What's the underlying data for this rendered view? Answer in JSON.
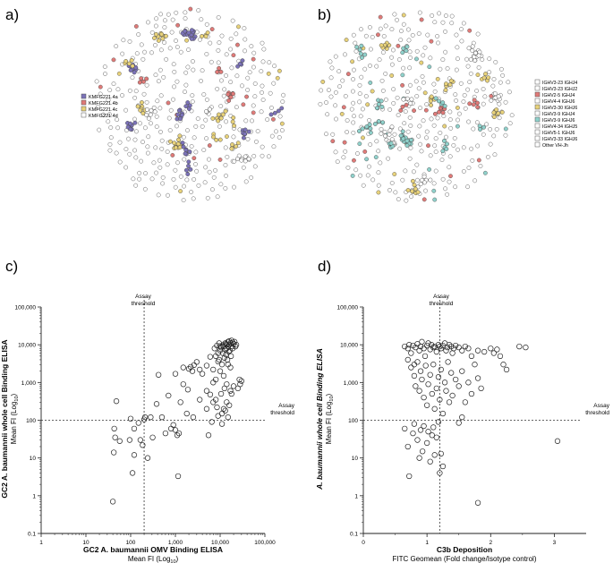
{
  "panels": {
    "a": {
      "label": "a)",
      "legend": [
        "KMFG221.4a",
        "KMFG221.4b",
        "KMFG221.4c",
        "KMFG221.4d"
      ],
      "legend_colors": [
        "#7b72b8",
        "#e07a78",
        "#e8d27a",
        "#ffffff"
      ],
      "network_palette": [
        "#7b72b8",
        "#e07a78",
        "#e8d27a",
        "#ffffff"
      ]
    },
    "b": {
      "label": "b)",
      "legend": [
        "IGHV3-23 IGHJ4",
        "IGHV3-23 IGHJ2",
        "IGHV2-5 IGHJ4",
        "IGHV4-4 IGHJ6",
        "IGHV3-30 IGHJ6",
        "IGHV3-9 IGHJ4",
        "IGHV3-9 IGHJ6",
        "IGHV4-34 IGHJ5",
        "IGHV5-1 IGHJ6",
        "IGHV3-33 IGHJ6",
        "Other VH-Jh"
      ],
      "legend_colors": [
        "#ffffff",
        "#ffffff",
        "#e07a78",
        "#ffffff",
        "#e8d27a",
        "#ffffff",
        "#8fd1cb",
        "#ffffff",
        "#ffffff",
        "#ffffff",
        "#ffffff"
      ],
      "network_palette": [
        "#ffffff",
        "#8fd1cb",
        "#e8d27a",
        "#e07a78"
      ]
    },
    "c": {
      "label": "c)"
    },
    "d": {
      "label": "d)"
    }
  },
  "chart_data": [
    {
      "panel": "c",
      "type": "scatter",
      "ylabel_line1": "GC2 A. baumannii whole cell Binding ELISA",
      "ylabel_line2": "Mean FI (Log",
      "ylabel_sub": "10",
      "ylabel_close": ")",
      "xlabel_line1": "GC2 A. baumannii OMV Binding ELISA",
      "xlabel_line2": "Mean FI (Log",
      "xlabel_sub": "10",
      "xlabel_close": ")",
      "x_scale": "log",
      "y_scale": "log",
      "xlim": [
        1,
        100000
      ],
      "ylim": [
        0.1,
        100000
      ],
      "x_ticks": [
        1,
        10,
        100,
        1000,
        10000,
        100000
      ],
      "x_tick_labels": [
        "1",
        "10",
        "100",
        "1,000",
        "10,000",
        "100,000"
      ],
      "y_ticks": [
        0.1,
        1,
        10,
        100,
        1000,
        10000,
        100000
      ],
      "y_tick_labels": [
        "0.1",
        "1",
        "10",
        "100",
        "1,000",
        "10,000",
        "100,000"
      ],
      "vline": {
        "x": 200,
        "label_line1": "Assay",
        "label_line2": "threshold"
      },
      "hline": {
        "y": 100,
        "label_line1": "Assay",
        "label_line2": "threshold"
      },
      "points": [
        [
          40,
          0.7
        ],
        [
          48,
          320
        ],
        [
          43,
          60
        ],
        [
          45,
          35
        ],
        [
          42,
          14
        ],
        [
          57,
          28
        ],
        [
          95,
          30
        ],
        [
          110,
          4
        ],
        [
          120,
          12
        ],
        [
          100,
          110
        ],
        [
          120,
          60
        ],
        [
          150,
          85
        ],
        [
          165,
          30
        ],
        [
          185,
          22
        ],
        [
          200,
          105
        ],
        [
          210,
          120
        ],
        [
          280,
          120
        ],
        [
          240,
          10
        ],
        [
          310,
          35
        ],
        [
          380,
          270
        ],
        [
          420,
          1600
        ],
        [
          500,
          120
        ],
        [
          600,
          45
        ],
        [
          700,
          450
        ],
        [
          800,
          60
        ],
        [
          900,
          75
        ],
        [
          1000,
          55
        ],
        [
          1000,
          1700
        ],
        [
          1100,
          40
        ],
        [
          1150,
          3.3
        ],
        [
          1200,
          45
        ],
        [
          1300,
          300
        ],
        [
          1500,
          900
        ],
        [
          1500,
          2500
        ],
        [
          1900,
          650
        ],
        [
          2000,
          2300
        ],
        [
          2200,
          2600
        ],
        [
          2400,
          2000
        ],
        [
          2600,
          2900
        ],
        [
          3000,
          3500
        ],
        [
          3500,
          2200
        ],
        [
          4000,
          1700
        ],
        [
          5000,
          2800
        ],
        [
          5000,
          200
        ],
        [
          5500,
          40
        ],
        [
          6000,
          480
        ],
        [
          6000,
          4800
        ],
        [
          6500,
          90
        ],
        [
          7000,
          1000
        ],
        [
          7000,
          2200
        ],
        [
          7500,
          8000
        ],
        [
          8000,
          5000
        ],
        [
          8000,
          350
        ],
        [
          8500,
          9500
        ],
        [
          9000,
          3600
        ],
        [
          9000,
          6000
        ],
        [
          9500,
          4000
        ],
        [
          10000,
          2000
        ],
        [
          10000,
          7000
        ],
        [
          10500,
          8500
        ],
        [
          11000,
          3000
        ],
        [
          11000,
          80
        ],
        [
          11500,
          6000
        ],
        [
          12000,
          9000
        ],
        [
          12000,
          1500
        ],
        [
          12500,
          4500
        ],
        [
          13000,
          7500
        ],
        [
          13000,
          11000
        ],
        [
          13500,
          5500
        ],
        [
          14000,
          8000
        ],
        [
          14000,
          10000
        ],
        [
          14500,
          4000
        ],
        [
          15000,
          9000
        ],
        [
          15000,
          12000
        ],
        [
          15500,
          6500
        ],
        [
          16000,
          10000
        ],
        [
          16500,
          7000
        ],
        [
          17000,
          11000
        ],
        [
          17500,
          5000
        ],
        [
          18000,
          9000
        ],
        [
          18000,
          13000
        ],
        [
          19000,
          8000
        ],
        [
          20000,
          10500
        ],
        [
          11000,
          150
        ],
        [
          12000,
          200
        ],
        [
          13000,
          180
        ],
        [
          14000,
          300
        ],
        [
          15000,
          120
        ],
        [
          16000,
          250
        ],
        [
          17000,
          600
        ],
        [
          12500,
          700
        ],
        [
          14000,
          900
        ],
        [
          18000,
          500
        ],
        [
          20000,
          800
        ],
        [
          25000,
          700
        ],
        [
          27000,
          1200
        ],
        [
          28000,
          900
        ],
        [
          30000,
          1100
        ],
        [
          10500,
          500
        ],
        [
          9000,
          130
        ],
        [
          8500,
          220
        ],
        [
          7000,
          300
        ],
        [
          5000,
          600
        ],
        [
          3500,
          350
        ],
        [
          2500,
          120
        ],
        [
          1800,
          150
        ],
        [
          21000,
          12000
        ],
        [
          22000,
          9000
        ],
        [
          23000,
          10000
        ],
        [
          16000,
          12500
        ],
        [
          19000,
          11500
        ],
        [
          13500,
          10500
        ],
        [
          11500,
          9800
        ],
        [
          10000,
          9200
        ],
        [
          9500,
          11000
        ],
        [
          15000,
          3000
        ],
        [
          17000,
          2500
        ],
        [
          8000,
          1200
        ]
      ]
    },
    {
      "panel": "d",
      "type": "scatter",
      "ylabel_line1": "A. baumannii whole cell Binding ELISA",
      "ylabel_line2": "Mean FI (Log",
      "ylabel_sub": "10",
      "ylabel_close": ")",
      "xlabel_line1": "C3b Deposition",
      "xlabel_line2": "FITC Geomean (Fold change/Isotype control)",
      "x_scale": "linear",
      "y_scale": "log",
      "xlim": [
        0,
        3.5
      ],
      "ylim": [
        0.1,
        100000
      ],
      "x_ticks": [
        0,
        1,
        2,
        3
      ],
      "x_tick_labels": [
        "0",
        "1",
        "2",
        "3"
      ],
      "y_ticks": [
        0.1,
        1,
        10,
        100,
        1000,
        10000,
        100000
      ],
      "y_tick_labels": [
        "0.1",
        "1",
        "10",
        "100",
        "1,000",
        "10,000",
        "100,000"
      ],
      "vline": {
        "x": 1.2,
        "label_line1": "Assay",
        "label_line2": "threshold"
      },
      "hline": {
        "y": 100,
        "label_line1": "Assay",
        "label_line2": "threshold"
      },
      "points": [
        [
          0.65,
          9000
        ],
        [
          0.7,
          8000
        ],
        [
          0.72,
          10000
        ],
        [
          0.75,
          6000
        ],
        [
          0.78,
          9500
        ],
        [
          0.8,
          3000
        ],
        [
          0.82,
          8500
        ],
        [
          0.85,
          10500
        ],
        [
          0.88,
          7000
        ],
        [
          0.9,
          9000
        ],
        [
          0.92,
          12000
        ],
        [
          0.95,
          8000
        ],
        [
          0.97,
          5000
        ],
        [
          1.0,
          9500
        ],
        [
          1.02,
          11000
        ],
        [
          1.05,
          7500
        ],
        [
          1.07,
          10000
        ],
        [
          1.1,
          8500
        ],
        [
          1.12,
          9000
        ],
        [
          1.15,
          6500
        ],
        [
          1.18,
          10000
        ],
        [
          1.2,
          9000
        ],
        [
          1.22,
          8000
        ],
        [
          1.25,
          9500
        ],
        [
          1.28,
          11000
        ],
        [
          1.3,
          7000
        ],
        [
          1.32,
          8500
        ],
        [
          1.35,
          10000
        ],
        [
          1.38,
          9000
        ],
        [
          1.4,
          6000
        ],
        [
          1.42,
          8000
        ],
        [
          1.45,
          9500
        ],
        [
          1.5,
          8500
        ],
        [
          1.55,
          7000
        ],
        [
          1.6,
          9000
        ],
        [
          1.65,
          8000
        ],
        [
          1.7,
          5000
        ],
        [
          1.75,
          3000
        ],
        [
          1.8,
          7000
        ],
        [
          1.9,
          6500
        ],
        [
          2.0,
          8000
        ],
        [
          2.05,
          6000
        ],
        [
          2.1,
          7500
        ],
        [
          2.15,
          5000
        ],
        [
          2.2,
          3000
        ],
        [
          2.25,
          2200
        ],
        [
          2.45,
          9000
        ],
        [
          2.55,
          8500
        ],
        [
          3.05,
          28
        ],
        [
          0.7,
          4000
        ],
        [
          0.75,
          2500
        ],
        [
          0.8,
          1500
        ],
        [
          0.82,
          800
        ],
        [
          0.85,
          3500
        ],
        [
          0.88,
          600
        ],
        [
          0.9,
          2000
        ],
        [
          0.92,
          1200
        ],
        [
          0.95,
          400
        ],
        [
          0.98,
          2800
        ],
        [
          1.0,
          250
        ],
        [
          1.02,
          900
        ],
        [
          1.05,
          1600
        ],
        [
          1.08,
          500
        ],
        [
          1.1,
          3000
        ],
        [
          1.12,
          200
        ],
        [
          1.15,
          700
        ],
        [
          1.18,
          1400
        ],
        [
          1.2,
          350
        ],
        [
          1.22,
          2200
        ],
        [
          1.25,
          150
        ],
        [
          1.28,
          1000
        ],
        [
          1.3,
          600
        ],
        [
          1.33,
          3500
        ],
        [
          1.35,
          300
        ],
        [
          1.38,
          1800
        ],
        [
          1.4,
          450
        ],
        [
          1.45,
          1200
        ],
        [
          1.5,
          800
        ],
        [
          1.55,
          2000
        ],
        [
          1.6,
          300
        ],
        [
          1.65,
          1000
        ],
        [
          1.7,
          500
        ],
        [
          1.8,
          1300
        ],
        [
          1.85,
          700
        ],
        [
          1.55,
          120
        ],
        [
          0.65,
          60
        ],
        [
          0.7,
          20
        ],
        [
          0.72,
          3.3
        ],
        [
          0.78,
          45
        ],
        [
          0.8,
          80
        ],
        [
          0.85,
          30
        ],
        [
          0.88,
          10
        ],
        [
          0.9,
          55
        ],
        [
          0.93,
          15
        ],
        [
          0.95,
          70
        ],
        [
          1.0,
          25
        ],
        [
          1.02,
          50
        ],
        [
          1.05,
          8
        ],
        [
          1.08,
          40
        ],
        [
          1.1,
          65
        ],
        [
          1.12,
          12
        ],
        [
          1.15,
          35
        ],
        [
          1.18,
          90
        ],
        [
          1.2,
          4
        ],
        [
          1.22,
          13
        ],
        [
          1.25,
          6
        ],
        [
          1.5,
          85
        ],
        [
          1.8,
          0.65
        ]
      ]
    }
  ]
}
